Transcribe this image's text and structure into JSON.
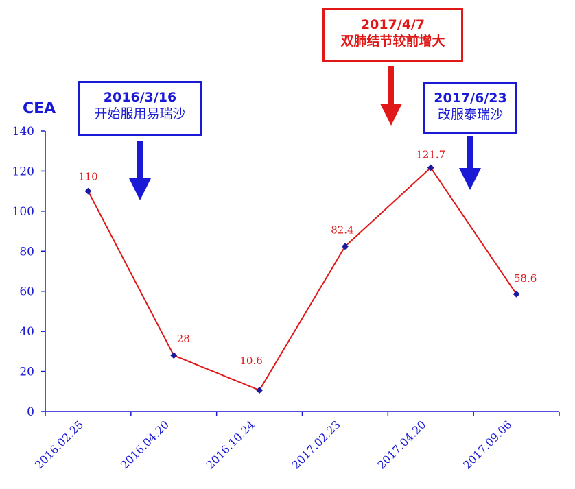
{
  "chart_data": {
    "type": "line",
    "ylabel": "CEA",
    "xlabel": "",
    "categories": [
      "2016.02.25",
      "2016.04.20",
      "2016.10.24",
      "2017.02.23",
      "2017.04.20",
      "2017.09.06"
    ],
    "values": [
      110,
      28,
      10.6,
      82.4,
      121.7,
      58.6
    ],
    "data_labels": [
      "110",
      "28",
      "10.6",
      "82.4",
      "121.7",
      "58.6"
    ],
    "yticks": [
      "0",
      "20",
      "40",
      "60",
      "80",
      "100",
      "120",
      "140"
    ],
    "ylim": [
      0,
      140
    ],
    "grid": false,
    "line_color": "#e01818",
    "axis_color": "#1a1ad6",
    "marker_color": "#1a1aa0"
  },
  "annotations": [
    {
      "date": "2016/3/16",
      "text": "开始服用易瑞沙",
      "color": "#1a1ad6"
    },
    {
      "date": "2017/4/7",
      "text": "双肺结节较前增大",
      "color": "#e01818"
    },
    {
      "date": "2017/6/23",
      "text": "改服泰瑞沙",
      "color": "#1a1ad6"
    }
  ]
}
